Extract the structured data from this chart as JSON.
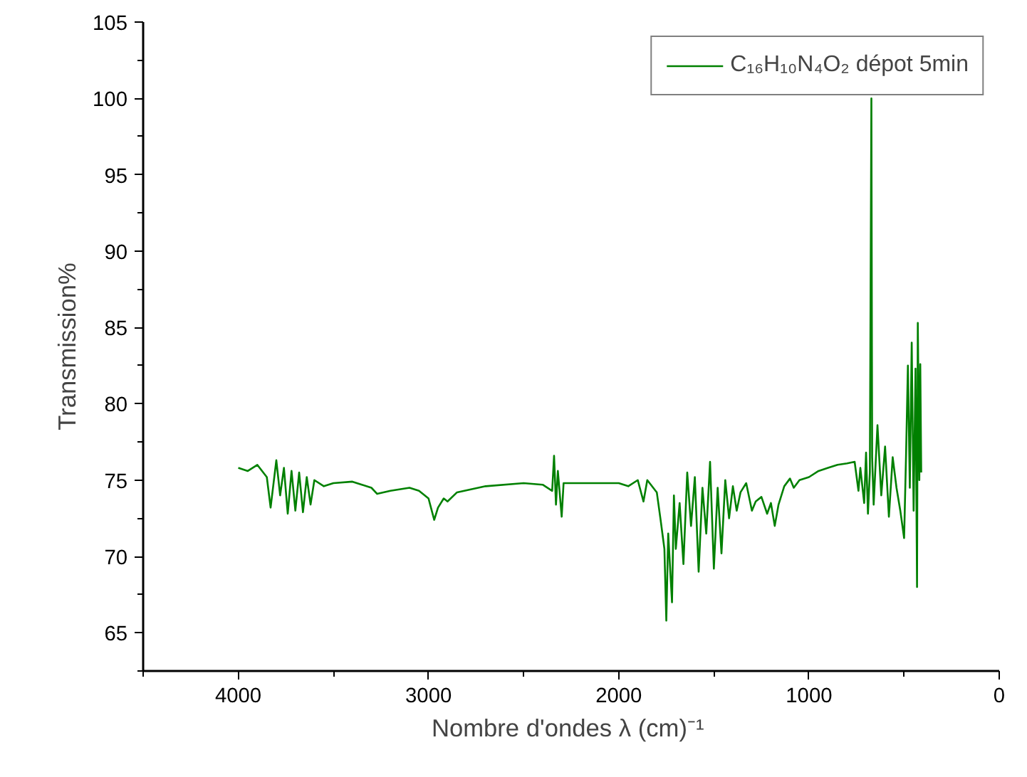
{
  "chart_data": {
    "type": "line",
    "xlabel": "Nombre  d'ondes λ (cm)⁻¹",
    "ylabel": "Transmission%",
    "xlim": [
      4500,
      0
    ],
    "ylim": [
      62.5,
      105
    ],
    "xticks": [
      {
        "value": 4500,
        "label": null
      },
      4000,
      {
        "value": 3500,
        "label": null
      },
      3000,
      {
        "value": 2500,
        "label": null
      },
      2000,
      {
        "value": 1500,
        "label": null
      },
      1000,
      {
        "value": 500,
        "label": null
      },
      0
    ],
    "yticks": [
      {
        "value": 62.5,
        "label": null
      },
      65,
      {
        "value": 67.5,
        "label": null
      },
      70,
      {
        "value": 72.5,
        "label": null
      },
      75,
      {
        "value": 77.5,
        "label": null
      },
      80,
      {
        "value": 82.5,
        "label": null
      },
      85,
      {
        "value": 87.5,
        "label": null
      },
      90,
      {
        "value": 92.5,
        "label": null
      },
      95,
      {
        "value": 97.5,
        "label": null
      },
      100,
      {
        "value": 102.5,
        "label": null
      },
      105
    ],
    "legend": "top right",
    "grid": false,
    "marker": "none",
    "line_style": "solid",
    "x": [
      4000,
      3950,
      3900,
      3850,
      3830,
      3800,
      3780,
      3760,
      3740,
      3720,
      3700,
      3680,
      3660,
      3640,
      3620,
      3600,
      3550,
      3500,
      3400,
      3350,
      3300,
      3270,
      3200,
      3100,
      3050,
      3000,
      2970,
      2950,
      2920,
      2900,
      2850,
      2700,
      2500,
      2400,
      2350,
      2340,
      2330,
      2320,
      2300,
      2290,
      2200,
      2000,
      1950,
      1900,
      1870,
      1850,
      1800,
      1780,
      1760,
      1750,
      1740,
      1720,
      1710,
      1700,
      1680,
      1660,
      1640,
      1620,
      1600,
      1580,
      1560,
      1540,
      1520,
      1500,
      1480,
      1460,
      1440,
      1420,
      1400,
      1380,
      1360,
      1330,
      1300,
      1280,
      1250,
      1220,
      1200,
      1180,
      1160,
      1130,
      1100,
      1080,
      1050,
      1000,
      950,
      900,
      850,
      800,
      760,
      740,
      730,
      710,
      700,
      690,
      680,
      672,
      668,
      660,
      640,
      620,
      600,
      580,
      560,
      540,
      520,
      500,
      490,
      480,
      470,
      460,
      450,
      440,
      432,
      428,
      420,
      415,
      410
    ],
    "series": [
      {
        "name": "C₁₆H₁₀N₄O₂ dépot 5min",
        "color": "#008000",
        "values": [
          75.8,
          75.6,
          76.0,
          75.2,
          73.2,
          76.3,
          74.0,
          75.8,
          72.8,
          75.6,
          73.0,
          75.5,
          72.9,
          75.2,
          73.4,
          75.0,
          74.6,
          74.8,
          74.9,
          74.7,
          74.5,
          74.1,
          74.3,
          74.5,
          74.3,
          73.8,
          72.4,
          73.2,
          73.8,
          73.6,
          74.2,
          74.6,
          74.8,
          74.7,
          74.3,
          76.6,
          73.4,
          75.6,
          72.6,
          74.8,
          74.8,
          74.8,
          74.6,
          75.0,
          73.6,
          75.0,
          74.2,
          72.4,
          70.5,
          65.8,
          71.5,
          67.0,
          74.0,
          70.5,
          73.5,
          69.5,
          75.5,
          72.0,
          75.2,
          69.0,
          74.5,
          71.5,
          76.2,
          69.2,
          74.5,
          70.2,
          75.0,
          72.5,
          74.6,
          73.0,
          74.2,
          74.8,
          73.0,
          73.6,
          73.9,
          72.8,
          73.5,
          72.0,
          73.4,
          74.6,
          75.1,
          74.5,
          75.0,
          75.2,
          75.6,
          75.8,
          76.0,
          76.1,
          76.2,
          74.3,
          75.8,
          73.5,
          76.8,
          72.8,
          75.5,
          100.0,
          76.5,
          73.4,
          78.6,
          74.0,
          77.2,
          72.6,
          76.5,
          74.5,
          73.0,
          71.2,
          76.5,
          82.5,
          74.5,
          84.0,
          73.0,
          82.3,
          68.0,
          85.3,
          75.0,
          82.6,
          75.5
        ]
      }
    ]
  }
}
